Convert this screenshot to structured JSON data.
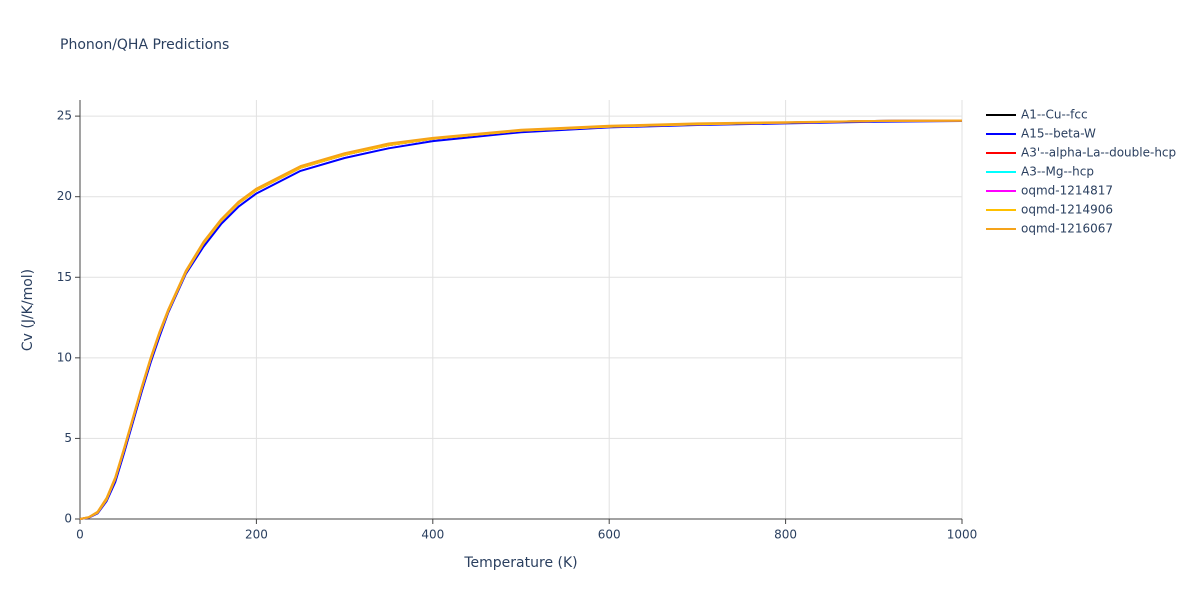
{
  "chart_data": {
    "type": "line",
    "title": "Phonon/QHA Predictions",
    "x_label": "Temperature (K)",
    "y_label": "Cv (J/K/mol)",
    "x": [
      0,
      10,
      20,
      30,
      40,
      50,
      60,
      70,
      80,
      90,
      100,
      120,
      140,
      160,
      180,
      200,
      250,
      300,
      350,
      400,
      500,
      600,
      700,
      800,
      900,
      1000
    ],
    "series": [
      {
        "name": "A1--Cu--fcc",
        "color": "#000000",
        "values": [
          0,
          0.1,
          0.4,
          1.2,
          2.5,
          4.3,
          6.2,
          8.1,
          9.9,
          11.5,
          12.9,
          15.3,
          17.1,
          18.5,
          19.6,
          20.4,
          21.8,
          22.6,
          23.2,
          23.6,
          24.1,
          24.35,
          24.5,
          24.6,
          24.7,
          24.72
        ]
      },
      {
        "name": "A15--beta-W",
        "color": "#0000ff",
        "values": [
          0,
          0.08,
          0.35,
          1.1,
          2.3,
          4.1,
          6.0,
          7.9,
          9.7,
          11.3,
          12.8,
          15.2,
          16.9,
          18.3,
          19.4,
          20.2,
          21.6,
          22.4,
          23.0,
          23.45,
          24.0,
          24.3,
          24.45,
          24.55,
          24.65,
          24.7
        ]
      },
      {
        "name": "A3'--alpha-La--double-hcp",
        "color": "#ff0000",
        "values": [
          0,
          0.1,
          0.4,
          1.2,
          2.5,
          4.3,
          6.2,
          8.1,
          9.9,
          11.5,
          12.9,
          15.3,
          17.1,
          18.5,
          19.6,
          20.4,
          21.8,
          22.6,
          23.2,
          23.6,
          24.1,
          24.35,
          24.5,
          24.6,
          24.7,
          24.72
        ]
      },
      {
        "name": "A3--Mg--hcp",
        "color": "#00ffff",
        "values": [
          0,
          0.1,
          0.4,
          1.2,
          2.5,
          4.3,
          6.2,
          8.1,
          9.9,
          11.5,
          12.9,
          15.3,
          17.1,
          18.5,
          19.6,
          20.4,
          21.8,
          22.6,
          23.2,
          23.6,
          24.1,
          24.35,
          24.5,
          24.6,
          24.7,
          24.72
        ]
      },
      {
        "name": "oqmd-1214817",
        "color": "#ff00ff",
        "values": [
          0,
          0.1,
          0.4,
          1.2,
          2.5,
          4.3,
          6.2,
          8.1,
          9.9,
          11.5,
          12.9,
          15.3,
          17.1,
          18.5,
          19.6,
          20.4,
          21.8,
          22.6,
          23.2,
          23.6,
          24.1,
          24.35,
          24.5,
          24.6,
          24.7,
          24.72
        ]
      },
      {
        "name": "oqmd-1214906",
        "color": "#ffc000",
        "values": [
          0,
          0.1,
          0.4,
          1.2,
          2.5,
          4.3,
          6.2,
          8.1,
          9.9,
          11.5,
          12.9,
          15.3,
          17.1,
          18.5,
          19.6,
          20.4,
          21.8,
          22.6,
          23.2,
          23.6,
          24.1,
          24.35,
          24.5,
          24.6,
          24.7,
          24.72
        ]
      },
      {
        "name": "oqmd-1216067",
        "color": "#f5a31a",
        "values": [
          0,
          0.12,
          0.45,
          1.3,
          2.6,
          4.4,
          6.3,
          8.2,
          10.0,
          11.6,
          13.0,
          15.4,
          17.2,
          18.6,
          19.7,
          20.5,
          21.9,
          22.7,
          23.3,
          23.65,
          24.15,
          24.4,
          24.55,
          24.62,
          24.7,
          24.72
        ]
      }
    ],
    "xlim": [
      0,
      1000
    ],
    "ylim": [
      0,
      26
    ],
    "xticks": [
      0,
      200,
      400,
      600,
      800,
      1000
    ],
    "yticks": [
      0,
      5,
      10,
      15,
      20,
      25
    ],
    "grid": true,
    "legend": "right"
  }
}
